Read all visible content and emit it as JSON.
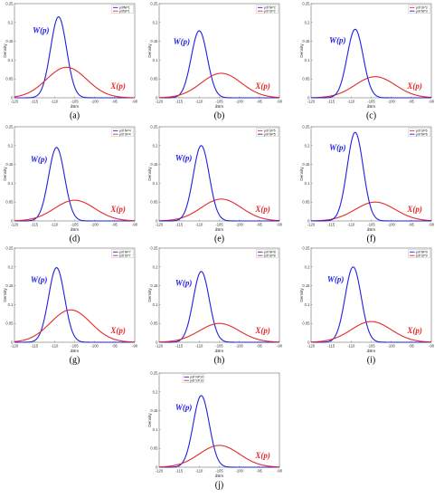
{
  "colors": {
    "w_curve": "#1f1fe0",
    "x_curve": "#e32a2a",
    "axis": "#555555"
  },
  "chart_data": [
    {
      "type": "line",
      "caption": "(a)",
      "xlabel": "dBm",
      "ylabel": "Density",
      "xlim": [
        -120,
        -90
      ],
      "ylim": [
        0,
        0.25
      ],
      "xticks": [
        "-120",
        "-115",
        "-110",
        "-105",
        "-100",
        "-95",
        "-90"
      ],
      "yticks": [
        "0",
        "0.05",
        "0.1",
        "0.15",
        "0.2",
        "0.25"
      ],
      "legend_position": "top-right",
      "series": [
        {
          "name": "pdfNP1",
          "label": "W(p)",
          "color": "#1f1fe0",
          "mean": -109,
          "peak": 0.215
        },
        {
          "name": "pdfSP1",
          "label": "X(p)",
          "color": "#e32a2a",
          "mean": -107,
          "peak": 0.081
        }
      ]
    },
    {
      "type": "line",
      "caption": "(b)",
      "xlabel": "dBm",
      "ylabel": "Density",
      "xlim": [
        -120,
        -90
      ],
      "ylim": [
        0,
        0.25
      ],
      "xticks": [
        "-120",
        "-115",
        "-110",
        "-105",
        "-100",
        "-95",
        "-90"
      ],
      "yticks": [
        "0",
        "0.05",
        "0.1",
        "0.15",
        "0.2",
        "0.25"
      ],
      "legend_position": "top-right",
      "series": [
        {
          "name": "pdf NP2",
          "label": "W(p)",
          "color": "#1f1fe0",
          "mean": -110,
          "peak": 0.178
        },
        {
          "name": "pdf SP2",
          "label": "X(p)",
          "color": "#e32a2a",
          "mean": -104.5,
          "peak": 0.065
        }
      ]
    },
    {
      "type": "line",
      "caption": "(c)",
      "xlabel": "dBm",
      "ylabel": "Density",
      "xlim": [
        -120,
        -90
      ],
      "ylim": [
        0,
        0.25
      ],
      "xticks": [
        "-120",
        "-115",
        "-110",
        "-105",
        "-100",
        "-95",
        "-90"
      ],
      "yticks": [
        "0",
        "0.05",
        "0.1",
        "0.15",
        "0.2",
        "0.25"
      ],
      "legend_position": "top-right",
      "series": [
        {
          "name": "pdf SP3",
          "label": "X(p)",
          "color": "#e32a2a",
          "mean": -104,
          "peak": 0.056
        },
        {
          "name": "pdf NP3",
          "label": "W(p)",
          "color": "#1f1fe0",
          "mean": -109,
          "peak": 0.182
        }
      ]
    },
    {
      "type": "line",
      "caption": "(d)",
      "xlabel": "dBm",
      "ylabel": "Density",
      "xlim": [
        -120,
        -90
      ],
      "ylim": [
        0,
        0.25
      ],
      "xticks": [
        "-120",
        "-115",
        "-110",
        "-105",
        "-100",
        "-95",
        "-90"
      ],
      "yticks": [
        "0",
        "0.05",
        "0.1",
        "0.15",
        "0.2",
        "0.25"
      ],
      "legend_position": "top-right",
      "series": [
        {
          "name": "pdf NP4",
          "label": "W(p)",
          "color": "#1f1fe0",
          "mean": -109.5,
          "peak": 0.195
        },
        {
          "name": "pdf SP4",
          "label": "X(p)",
          "color": "#e32a2a",
          "mean": -105,
          "peak": 0.055
        }
      ]
    },
    {
      "type": "line",
      "caption": "(e)",
      "xlabel": "dBm",
      "ylabel": "Density",
      "xlim": [
        -120,
        -90
      ],
      "ylim": [
        0,
        0.25
      ],
      "xticks": [
        "-120",
        "-115",
        "-110",
        "-105",
        "-100",
        "-95",
        "-90"
      ],
      "yticks": [
        "0",
        "0.05",
        "0.1",
        "0.15",
        "0.2",
        "0.25"
      ],
      "legend_position": "top-right",
      "series": [
        {
          "name": "pdf SP5",
          "label": "X(p)",
          "color": "#e32a2a",
          "mean": -104.5,
          "peak": 0.058
        },
        {
          "name": "pdf NP5",
          "label": "W(p)",
          "color": "#1f1fe0",
          "mean": -109.5,
          "peak": 0.2
        }
      ]
    },
    {
      "type": "line",
      "caption": "(f)",
      "xlabel": "dBm",
      "ylabel": "Density",
      "xlim": [
        -120,
        -90
      ],
      "ylim": [
        0,
        0.25
      ],
      "xticks": [
        "-120",
        "-115",
        "-110",
        "-105",
        "-100",
        "-95",
        "-90"
      ],
      "yticks": [
        "0",
        "0.05",
        "0.1",
        "0.15",
        "0.2",
        "0.25"
      ],
      "legend_position": "top-right",
      "series": [
        {
          "name": "pdf SP6",
          "label": "X(p)",
          "color": "#e32a2a",
          "mean": -104,
          "peak": 0.05
        },
        {
          "name": "pdf NP6",
          "label": "W(p)",
          "color": "#1f1fe0",
          "mean": -109,
          "peak": 0.235
        }
      ]
    },
    {
      "type": "line",
      "caption": "(g)",
      "xlabel": "dBm",
      "ylabel": "Density",
      "xlim": [
        -120,
        -90
      ],
      "ylim": [
        0,
        0.25
      ],
      "xticks": [
        "-120",
        "-115",
        "-110",
        "-105",
        "-100",
        "-95",
        "-90"
      ],
      "yticks": [
        "0",
        "0.05",
        "0.1",
        "0.15",
        "0.2",
        "0.25"
      ],
      "legend_position": "top-right",
      "series": [
        {
          "name": "pdf NP7",
          "label": "W(p)",
          "color": "#1f1fe0",
          "mean": -109.5,
          "peak": 0.198
        },
        {
          "name": "pdf SP7",
          "label": "X(p)",
          "color": "#e32a2a",
          "mean": -106,
          "peak": 0.086
        }
      ]
    },
    {
      "type": "line",
      "caption": "(h)",
      "xlabel": "dBm",
      "ylabel": "Density",
      "xlim": [
        -120,
        -90
      ],
      "ylim": [
        0,
        0.25
      ],
      "xticks": [
        "-120",
        "-115",
        "-110",
        "-105",
        "-100",
        "-95",
        "-90"
      ],
      "yticks": [
        "0",
        "0.05",
        "0.1",
        "0.15",
        "0.2",
        "0.25"
      ],
      "legend_position": "top-right",
      "series": [
        {
          "name": "pdf NP8",
          "label": "W(p)",
          "color": "#1f1fe0",
          "mean": -109.5,
          "peak": 0.188
        },
        {
          "name": "pdf SP8",
          "label": "X(p)",
          "color": "#e32a2a",
          "mean": -105,
          "peak": 0.05
        }
      ]
    },
    {
      "type": "line",
      "caption": "(i)",
      "xlabel": "dBm",
      "ylabel": "Density",
      "xlim": [
        -120,
        -90
      ],
      "ylim": [
        0,
        0.25
      ],
      "xticks": [
        "-120",
        "-115",
        "-110",
        "-105",
        "-100",
        "-95",
        "-90"
      ],
      "yticks": [
        "0",
        "0.05",
        "0.1",
        "0.15",
        "0.2",
        "0.25"
      ],
      "legend_position": "top-right",
      "series": [
        {
          "name": "pdf NP9",
          "label": "W(p)",
          "color": "#1f1fe0",
          "mean": -109.5,
          "peak": 0.2
        },
        {
          "name": "pdf SP9",
          "label": "X(p)",
          "color": "#e32a2a",
          "mean": -105,
          "peak": 0.055
        }
      ]
    },
    {
      "type": "line",
      "caption": "(j)",
      "xlabel": "dBm",
      "ylabel": "Density",
      "xlim": [
        -120,
        -90
      ],
      "ylim": [
        0,
        0.25
      ],
      "xticks": [
        "-120",
        "-115",
        "-110",
        "-105",
        "-100",
        "-95",
        "-90"
      ],
      "yticks": [
        "0",
        "0.05",
        "0.1",
        "0.15",
        "0.2",
        "0.25"
      ],
      "legend_position": "top-left",
      "series": [
        {
          "name": "pdf NP10",
          "label": "W(p)",
          "color": "#1f1fe0",
          "mean": -109.5,
          "peak": 0.19
        },
        {
          "name": "pdf SP10",
          "label": "X(p)",
          "color": "#e32a2a",
          "mean": -105,
          "peak": 0.058
        }
      ]
    }
  ]
}
